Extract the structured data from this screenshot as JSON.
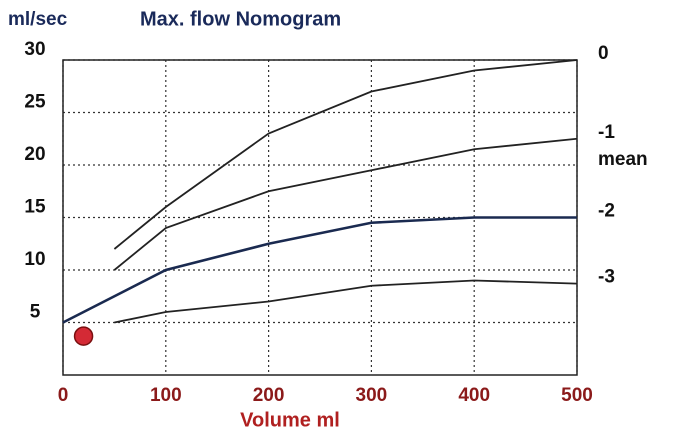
{
  "chart_data": {
    "type": "line",
    "title": "Max. flow Nomogram",
    "ylabel": "ml/sec",
    "xlabel": "Volume ml",
    "annotation": "mean",
    "xlim": [
      0,
      500
    ],
    "xticks": [
      0,
      100,
      200,
      300,
      400,
      500
    ],
    "ylim": [
      0,
      30
    ],
    "yticks": [
      5,
      10,
      15,
      20,
      25,
      30
    ],
    "grid": true,
    "series": [
      {
        "name": "0",
        "color": "#222222",
        "x": [
          50,
          100,
          200,
          300,
          400,
          500
        ],
        "values": [
          12,
          16,
          23,
          27,
          29,
          30
        ]
      },
      {
        "name": "-1",
        "color": "#222222",
        "x": [
          50,
          100,
          200,
          300,
          400,
          500
        ],
        "values": [
          10,
          14,
          17.5,
          19.5,
          21.5,
          22.5
        ]
      },
      {
        "name": "-2",
        "color": "#1a2a50",
        "x": [
          0,
          100,
          200,
          300,
          400,
          500
        ],
        "values": [
          5,
          10,
          12.5,
          14.5,
          15,
          15
        ]
      },
      {
        "name": "-3",
        "color": "#222222",
        "x": [
          50,
          100,
          200,
          300,
          400,
          500
        ],
        "values": [
          5,
          6,
          7,
          8.5,
          9,
          8.7
        ]
      }
    ],
    "point": {
      "x": 20,
      "y": 3.7,
      "color": "#d42a35"
    }
  }
}
